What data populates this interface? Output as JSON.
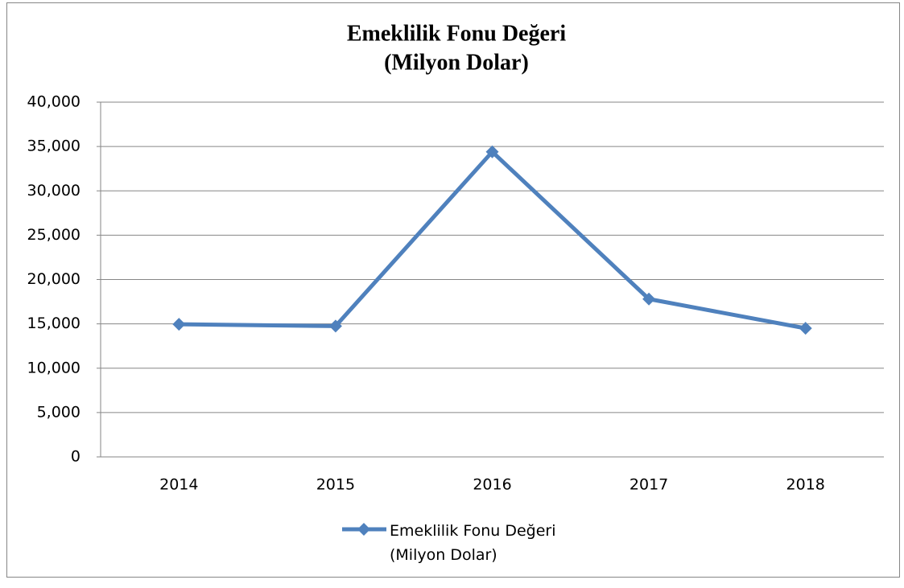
{
  "chart_data": {
    "type": "line",
    "title": [
      "Emeklilik Fonu Değeri",
      "(Milyon Dolar)"
    ],
    "categories": [
      "2014",
      "2015",
      "2016",
      "2017",
      "2018"
    ],
    "series": [
      {
        "name": "Emeklilik Fonu Değeri (Milyon Dolar)",
        "color": "#4f81bd",
        "values": [
          14950,
          14750,
          34400,
          17800,
          14500
        ]
      }
    ],
    "ylim": [
      0,
      40000
    ],
    "yticks": [
      0,
      {
        "value": 5000,
        "label": "5,000"
      },
      {
        "value": 10000,
        "label": "10,000"
      },
      {
        "value": 15000,
        "label": "15,000"
      },
      {
        "value": 20000,
        "label": "20,000"
      },
      {
        "value": 25000,
        "label": "25,000"
      },
      {
        "value": 30000,
        "label": "30,000"
      },
      {
        "value": 35000,
        "label": "35,000"
      },
      {
        "value": 40000,
        "label": "40,000"
      }
    ],
    "grid": true,
    "legend": "bottom"
  }
}
